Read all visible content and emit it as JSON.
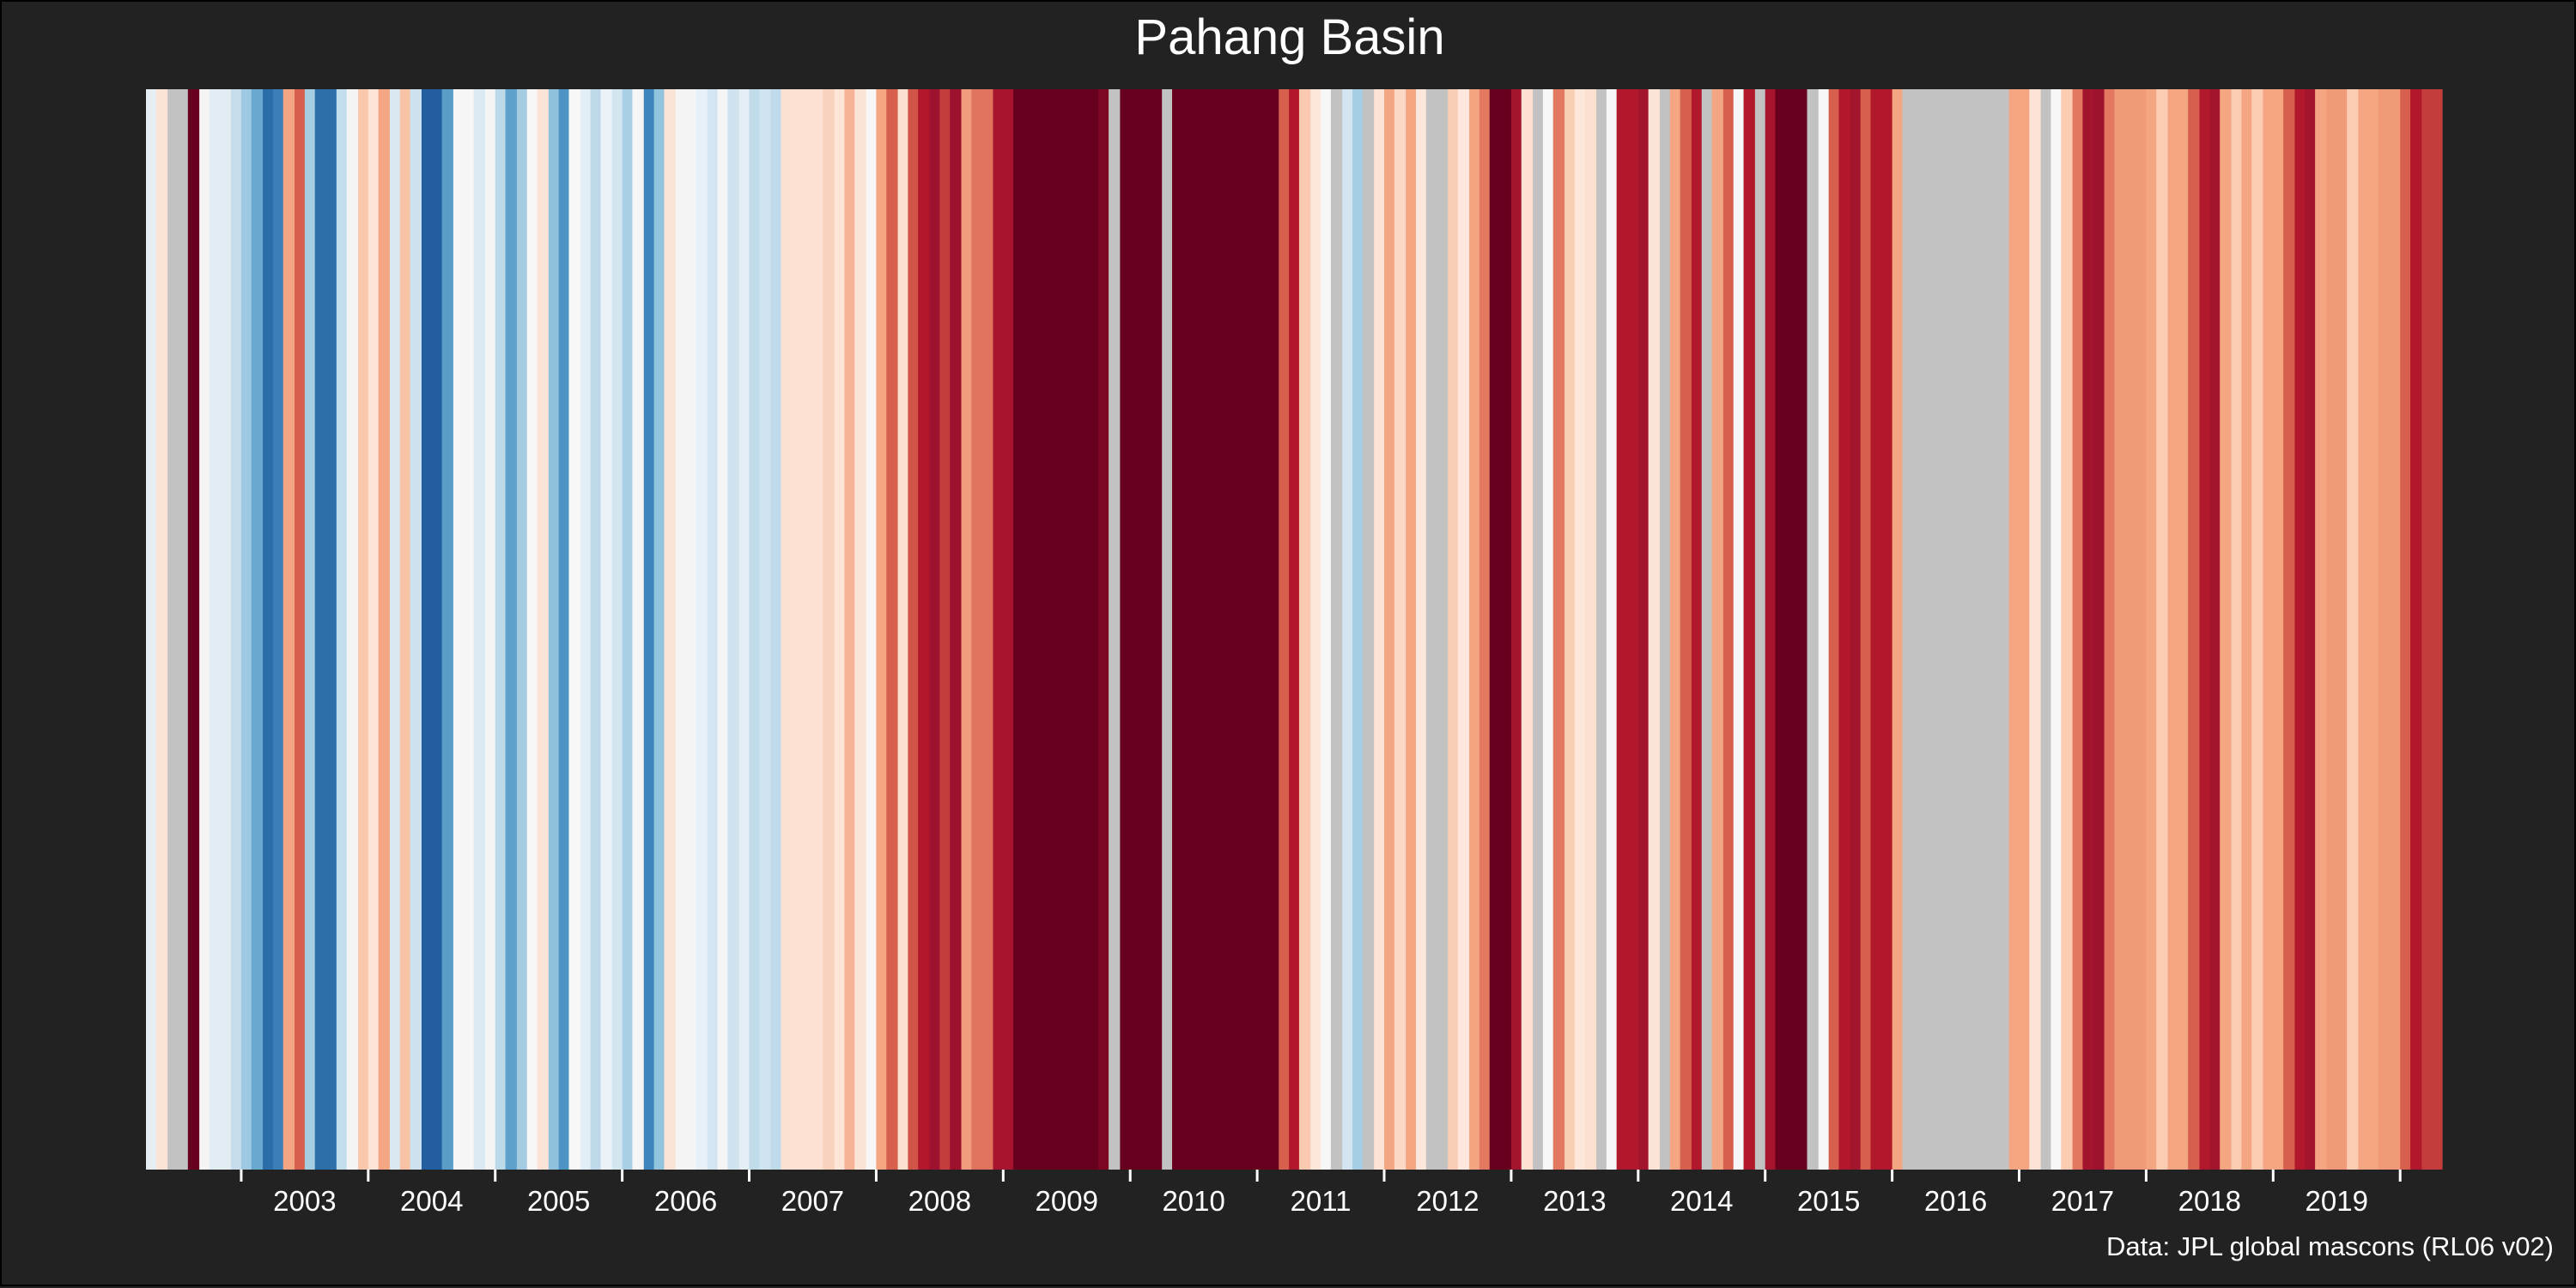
{
  "chart_data": {
    "type": "heatmap",
    "title": "Pahang Basin",
    "caption": "Data: JPL global mascons (RL06 v02)",
    "x_tick_labels": [
      "2003",
      "2004",
      "2005",
      "2006",
      "2007",
      "2008",
      "2009",
      "2010",
      "2011",
      "2012",
      "2013",
      "2014",
      "2015",
      "2016",
      "2017",
      "2018",
      "2019"
    ],
    "xlim": [
      2002.25,
      2020.33
    ],
    "missing_color": "#c2c2c2",
    "stripes": [
      {
        "start": 2002.25,
        "end": 2002.33,
        "color": "#e6eef4"
      },
      {
        "start": 2002.33,
        "end": 2002.42,
        "color": "#fbe3d6"
      },
      {
        "start": 2002.42,
        "end": 2002.58,
        "color": "#c2c2c2"
      },
      {
        "start": 2002.58,
        "end": 2002.67,
        "color": "#67001f"
      },
      {
        "start": 2002.67,
        "end": 2002.75,
        "color": "#f4f4f4"
      },
      {
        "start": 2002.75,
        "end": 2002.92,
        "color": "#e2edf3"
      },
      {
        "start": 2002.92,
        "end": 2003.0,
        "color": "#c6dcea"
      },
      {
        "start": 2003.0,
        "end": 2003.08,
        "color": "#9ec9e2"
      },
      {
        "start": 2003.08,
        "end": 2003.17,
        "color": "#69a9cf"
      },
      {
        "start": 2003.17,
        "end": 2003.25,
        "color": "#2b6da8"
      },
      {
        "start": 2003.25,
        "end": 2003.33,
        "color": "#3b7fb8"
      },
      {
        "start": 2003.33,
        "end": 2003.42,
        "color": "#f4a582"
      },
      {
        "start": 2003.42,
        "end": 2003.5,
        "color": "#d6604d"
      },
      {
        "start": 2003.5,
        "end": 2003.58,
        "color": "#a6cee3"
      },
      {
        "start": 2003.58,
        "end": 2003.75,
        "color": "#2d6fa9"
      },
      {
        "start": 2003.75,
        "end": 2003.83,
        "color": "#c2ddec"
      },
      {
        "start": 2003.83,
        "end": 2003.92,
        "color": "#f4f4f4"
      },
      {
        "start": 2003.92,
        "end": 2004.0,
        "color": "#f9c7ac"
      },
      {
        "start": 2004.0,
        "end": 2004.08,
        "color": "#fde4d6"
      },
      {
        "start": 2004.08,
        "end": 2004.17,
        "color": "#f4a582"
      },
      {
        "start": 2004.17,
        "end": 2004.25,
        "color": "#d9e8f1"
      },
      {
        "start": 2004.25,
        "end": 2004.33,
        "color": "#f8c2a6"
      },
      {
        "start": 2004.33,
        "end": 2004.42,
        "color": "#cde2ee"
      },
      {
        "start": 2004.42,
        "end": 2004.58,
        "color": "#225ea0"
      },
      {
        "start": 2004.58,
        "end": 2004.67,
        "color": "#5a9ec8"
      },
      {
        "start": 2004.67,
        "end": 2004.83,
        "color": "#f6f6f6"
      },
      {
        "start": 2004.83,
        "end": 2004.92,
        "color": "#dbe9f2"
      },
      {
        "start": 2004.92,
        "end": 2005.0,
        "color": "#f4f4f4"
      },
      {
        "start": 2005.0,
        "end": 2005.08,
        "color": "#bcd9ea"
      },
      {
        "start": 2005.08,
        "end": 2005.17,
        "color": "#5ea1cb"
      },
      {
        "start": 2005.17,
        "end": 2005.25,
        "color": "#a3cbe2"
      },
      {
        "start": 2005.25,
        "end": 2005.33,
        "color": "#f7f7f7"
      },
      {
        "start": 2005.33,
        "end": 2005.42,
        "color": "#fbe4d7"
      },
      {
        "start": 2005.42,
        "end": 2005.5,
        "color": "#8fc1dd"
      },
      {
        "start": 2005.5,
        "end": 2005.58,
        "color": "#4d94c4"
      },
      {
        "start": 2005.58,
        "end": 2005.67,
        "color": "#f7f7f7"
      },
      {
        "start": 2005.67,
        "end": 2005.75,
        "color": "#e4eef5"
      },
      {
        "start": 2005.75,
        "end": 2005.83,
        "color": "#bcd8e9"
      },
      {
        "start": 2005.83,
        "end": 2005.92,
        "color": "#eaf2f7"
      },
      {
        "start": 2005.92,
        "end": 2006.0,
        "color": "#d3e6f0"
      },
      {
        "start": 2006.0,
        "end": 2006.08,
        "color": "#a9cfe4"
      },
      {
        "start": 2006.08,
        "end": 2006.17,
        "color": "#f5f5f5"
      },
      {
        "start": 2006.17,
        "end": 2006.25,
        "color": "#3d85bc"
      },
      {
        "start": 2006.25,
        "end": 2006.33,
        "color": "#92c4de"
      },
      {
        "start": 2006.33,
        "end": 2006.42,
        "color": "#fbe4d7"
      },
      {
        "start": 2006.42,
        "end": 2006.58,
        "color": "#f4f4f4"
      },
      {
        "start": 2006.58,
        "end": 2006.67,
        "color": "#e6f0f6"
      },
      {
        "start": 2006.67,
        "end": 2006.75,
        "color": "#d3e5f0"
      },
      {
        "start": 2006.75,
        "end": 2006.83,
        "color": "#f4f4f4"
      },
      {
        "start": 2006.83,
        "end": 2006.92,
        "color": "#cfe3ef"
      },
      {
        "start": 2006.92,
        "end": 2007.0,
        "color": "#e2edf4"
      },
      {
        "start": 2007.0,
        "end": 2007.08,
        "color": "#c0dbea"
      },
      {
        "start": 2007.08,
        "end": 2007.17,
        "color": "#d0e4ef"
      },
      {
        "start": 2007.17,
        "end": 2007.25,
        "color": "#bfdaea"
      },
      {
        "start": 2007.25,
        "end": 2007.33,
        "color": "#fbe1d1"
      },
      {
        "start": 2007.33,
        "end": 2007.58,
        "color": "#fde2d3"
      },
      {
        "start": 2007.58,
        "end": 2007.67,
        "color": "#f9d2be"
      },
      {
        "start": 2007.67,
        "end": 2007.75,
        "color": "#fde5d8"
      },
      {
        "start": 2007.75,
        "end": 2007.83,
        "color": "#f6b396"
      },
      {
        "start": 2007.83,
        "end": 2007.92,
        "color": "#fbe3d6"
      },
      {
        "start": 2007.92,
        "end": 2008.0,
        "color": "#f7f7f7"
      },
      {
        "start": 2008.0,
        "end": 2008.08,
        "color": "#f4a582"
      },
      {
        "start": 2008.08,
        "end": 2008.17,
        "color": "#d6604d"
      },
      {
        "start": 2008.17,
        "end": 2008.25,
        "color": "#fce1d1"
      },
      {
        "start": 2008.25,
        "end": 2008.33,
        "color": "#d05548"
      },
      {
        "start": 2008.33,
        "end": 2008.42,
        "color": "#b2182b"
      },
      {
        "start": 2008.42,
        "end": 2008.5,
        "color": "#9e1230"
      },
      {
        "start": 2008.5,
        "end": 2008.58,
        "color": "#c43c3c"
      },
      {
        "start": 2008.58,
        "end": 2008.67,
        "color": "#9d112f"
      },
      {
        "start": 2008.67,
        "end": 2008.75,
        "color": "#f19c7c"
      },
      {
        "start": 2008.75,
        "end": 2008.92,
        "color": "#e0735e"
      },
      {
        "start": 2008.92,
        "end": 2009.08,
        "color": "#a7142d"
      },
      {
        "start": 2009.08,
        "end": 2009.25,
        "color": "#67001f"
      },
      {
        "start": 2009.25,
        "end": 2009.75,
        "color": "#67001f"
      },
      {
        "start": 2009.75,
        "end": 2009.83,
        "color": "#7d0623"
      },
      {
        "start": 2009.83,
        "end": 2009.92,
        "color": "#c2c2c2"
      },
      {
        "start": 2009.92,
        "end": 2010.25,
        "color": "#67001f"
      },
      {
        "start": 2010.25,
        "end": 2010.33,
        "color": "#c2c2c2"
      },
      {
        "start": 2010.33,
        "end": 2011.17,
        "color": "#67001f"
      },
      {
        "start": 2011.17,
        "end": 2011.25,
        "color": "#d6604d"
      },
      {
        "start": 2011.25,
        "end": 2011.33,
        "color": "#b2182b"
      },
      {
        "start": 2011.33,
        "end": 2011.42,
        "color": "#f9c9b0"
      },
      {
        "start": 2011.42,
        "end": 2011.5,
        "color": "#fde6da"
      },
      {
        "start": 2011.5,
        "end": 2011.58,
        "color": "#f7f7f7"
      },
      {
        "start": 2011.58,
        "end": 2011.67,
        "color": "#c2c2c2"
      },
      {
        "start": 2011.67,
        "end": 2011.75,
        "color": "#d2e5f0"
      },
      {
        "start": 2011.75,
        "end": 2011.83,
        "color": "#a5cde3"
      },
      {
        "start": 2011.83,
        "end": 2011.92,
        "color": "#c2c2c2"
      },
      {
        "start": 2011.92,
        "end": 2012.0,
        "color": "#fde3d5"
      },
      {
        "start": 2012.0,
        "end": 2012.08,
        "color": "#f4a582"
      },
      {
        "start": 2012.08,
        "end": 2012.17,
        "color": "#fbd8c5"
      },
      {
        "start": 2012.17,
        "end": 2012.25,
        "color": "#f4a582"
      },
      {
        "start": 2012.25,
        "end": 2012.33,
        "color": "#fde7dc"
      },
      {
        "start": 2012.33,
        "end": 2012.5,
        "color": "#c2c2c2"
      },
      {
        "start": 2012.5,
        "end": 2012.58,
        "color": "#f9cdb5"
      },
      {
        "start": 2012.58,
        "end": 2012.67,
        "color": "#fde7dc"
      },
      {
        "start": 2012.67,
        "end": 2012.75,
        "color": "#f3a481"
      },
      {
        "start": 2012.75,
        "end": 2012.83,
        "color": "#e27860"
      },
      {
        "start": 2012.83,
        "end": 2013.0,
        "color": "#67001f"
      },
      {
        "start": 2013.0,
        "end": 2013.08,
        "color": "#a3142d"
      },
      {
        "start": 2013.08,
        "end": 2013.17,
        "color": "#fde0d0"
      },
      {
        "start": 2013.17,
        "end": 2013.25,
        "color": "#c2c2c2"
      },
      {
        "start": 2013.25,
        "end": 2013.33,
        "color": "#f7f7f7"
      },
      {
        "start": 2013.33,
        "end": 2013.42,
        "color": "#e27860"
      },
      {
        "start": 2013.42,
        "end": 2013.5,
        "color": "#f9ccb4"
      },
      {
        "start": 2013.5,
        "end": 2013.58,
        "color": "#fde6da"
      },
      {
        "start": 2013.58,
        "end": 2013.67,
        "color": "#fbdfcf"
      },
      {
        "start": 2013.67,
        "end": 2013.75,
        "color": "#c2c2c2"
      },
      {
        "start": 2013.75,
        "end": 2013.83,
        "color": "#f7f7f7"
      },
      {
        "start": 2013.83,
        "end": 2014.0,
        "color": "#b2182b"
      },
      {
        "start": 2014.0,
        "end": 2014.08,
        "color": "#a3142d"
      },
      {
        "start": 2014.08,
        "end": 2014.17,
        "color": "#fbe4d7"
      },
      {
        "start": 2014.17,
        "end": 2014.25,
        "color": "#c2c2c2"
      },
      {
        "start": 2014.25,
        "end": 2014.33,
        "color": "#f4a582"
      },
      {
        "start": 2014.33,
        "end": 2014.42,
        "color": "#d6604d"
      },
      {
        "start": 2014.42,
        "end": 2014.5,
        "color": "#b2182b"
      },
      {
        "start": 2014.5,
        "end": 2014.58,
        "color": "#c2c2c2"
      },
      {
        "start": 2014.58,
        "end": 2014.67,
        "color": "#f4a582"
      },
      {
        "start": 2014.67,
        "end": 2014.75,
        "color": "#d6604d"
      },
      {
        "start": 2014.75,
        "end": 2014.83,
        "color": "#f7f7f7"
      },
      {
        "start": 2014.83,
        "end": 2014.92,
        "color": "#b2182b"
      },
      {
        "start": 2014.92,
        "end": 2015.0,
        "color": "#c2c2c2"
      },
      {
        "start": 2015.0,
        "end": 2015.08,
        "color": "#a7142d"
      },
      {
        "start": 2015.08,
        "end": 2015.17,
        "color": "#67001f"
      },
      {
        "start": 2015.17,
        "end": 2015.33,
        "color": "#67001f"
      },
      {
        "start": 2015.33,
        "end": 2015.42,
        "color": "#c2c2c2"
      },
      {
        "start": 2015.42,
        "end": 2015.5,
        "color": "#f7f7f7"
      },
      {
        "start": 2015.5,
        "end": 2015.58,
        "color": "#d6604d"
      },
      {
        "start": 2015.58,
        "end": 2015.67,
        "color": "#b2182b"
      },
      {
        "start": 2015.67,
        "end": 2015.75,
        "color": "#a3142d"
      },
      {
        "start": 2015.75,
        "end": 2015.83,
        "color": "#d6604d"
      },
      {
        "start": 2015.83,
        "end": 2016.0,
        "color": "#b2182b"
      },
      {
        "start": 2016.0,
        "end": 2016.08,
        "color": "#f4a582"
      },
      {
        "start": 2016.08,
        "end": 2016.92,
        "color": "#c2c2c2"
      },
      {
        "start": 2016.92,
        "end": 2017.08,
        "color": "#f4a582"
      },
      {
        "start": 2017.08,
        "end": 2017.17,
        "color": "#fde3d5"
      },
      {
        "start": 2017.17,
        "end": 2017.25,
        "color": "#c2c2c2"
      },
      {
        "start": 2017.25,
        "end": 2017.33,
        "color": "#f7f7f7"
      },
      {
        "start": 2017.33,
        "end": 2017.42,
        "color": "#fbcbb2"
      },
      {
        "start": 2017.42,
        "end": 2017.5,
        "color": "#e27860"
      },
      {
        "start": 2017.5,
        "end": 2017.58,
        "color": "#a3142d"
      },
      {
        "start": 2017.58,
        "end": 2017.67,
        "color": "#9e1230"
      },
      {
        "start": 2017.67,
        "end": 2017.75,
        "color": "#e27860"
      },
      {
        "start": 2017.75,
        "end": 2018.0,
        "color": "#f09a7a"
      },
      {
        "start": 2018.0,
        "end": 2018.08,
        "color": "#f4a582"
      },
      {
        "start": 2018.08,
        "end": 2018.17,
        "color": "#fbcbb2"
      },
      {
        "start": 2018.17,
        "end": 2018.33,
        "color": "#f4a582"
      },
      {
        "start": 2018.33,
        "end": 2018.42,
        "color": "#d6604d"
      },
      {
        "start": 2018.42,
        "end": 2018.5,
        "color": "#b2182b"
      },
      {
        "start": 2018.5,
        "end": 2018.58,
        "color": "#a3142d"
      },
      {
        "start": 2018.58,
        "end": 2018.67,
        "color": "#f4a582"
      },
      {
        "start": 2018.67,
        "end": 2018.75,
        "color": "#fbcbb2"
      },
      {
        "start": 2018.75,
        "end": 2018.83,
        "color": "#f4a582"
      },
      {
        "start": 2018.83,
        "end": 2018.92,
        "color": "#fbcbb2"
      },
      {
        "start": 2018.92,
        "end": 2019.08,
        "color": "#f4a582"
      },
      {
        "start": 2019.08,
        "end": 2019.17,
        "color": "#d6604d"
      },
      {
        "start": 2019.17,
        "end": 2019.25,
        "color": "#b2182b"
      },
      {
        "start": 2019.25,
        "end": 2019.33,
        "color": "#a3142d"
      },
      {
        "start": 2019.33,
        "end": 2019.42,
        "color": "#f4a582"
      },
      {
        "start": 2019.42,
        "end": 2019.58,
        "color": "#f09a7a"
      },
      {
        "start": 2019.58,
        "end": 2019.67,
        "color": "#fbcbb2"
      },
      {
        "start": 2019.67,
        "end": 2019.83,
        "color": "#f4a582"
      },
      {
        "start": 2019.83,
        "end": 2020.0,
        "color": "#f09a7a"
      },
      {
        "start": 2020.0,
        "end": 2020.08,
        "color": "#d6604d"
      },
      {
        "start": 2020.08,
        "end": 2020.17,
        "color": "#b2182b"
      },
      {
        "start": 2020.17,
        "end": 2020.33,
        "color": "#c43c3c"
      }
    ]
  }
}
